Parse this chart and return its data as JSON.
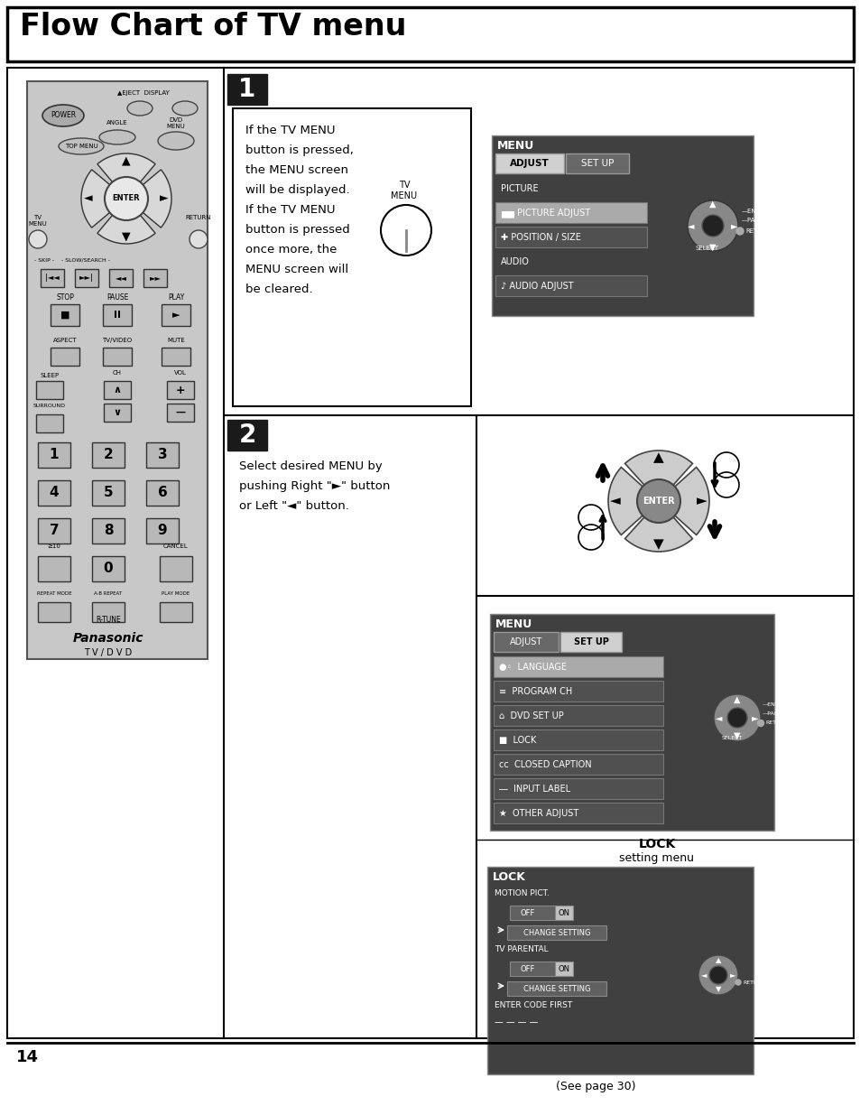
{
  "title": "Flow Chart of TV menu",
  "page_num": "14",
  "bg_color": "#ffffff",
  "section1_text_lines": [
    "If the TV MENU",
    "button is pressed,",
    "the MENU screen",
    "will be displayed.",
    "If the TV MENU",
    "button is pressed",
    "once more, the",
    "MENU screen will",
    "be cleared."
  ],
  "section2_text_lines": [
    "Select desired MENU by",
    "pushing Right \"►\" button",
    "or Left \"◄\" button."
  ],
  "menu1_items": [
    "PICTURE",
    "PICTURE ADJUST",
    "POSITION / SIZE",
    "AUDIO",
    "AUDIO ADJUST"
  ],
  "menu1_icons": [
    "",
    "▆▆",
    "✚",
    "",
    "♪"
  ],
  "menu1_highlight": 1,
  "menu2_items": [
    "LANGUAGE",
    "PROGRAM CH",
    "DVD SET UP",
    "LOCK",
    "CLOSED CAPTION",
    "INPUT LABEL",
    "OTHER ADJUST"
  ],
  "menu2_icons": [
    "●◦",
    "≡",
    "⌂",
    "■",
    "cc",
    "―",
    "★"
  ],
  "menu2_highlight": 0,
  "lock_label1": "LOCK",
  "lock_label2": "setting menu",
  "see_page": "(See page 30)",
  "dark_bg": "#404040",
  "dark_bg2": "#3c3c3c",
  "tab_active_bg": "#d0d0d0",
  "tab_inactive_bg": "#686868",
  "item_highlight_bg": "#aaaaaa",
  "item_bg": "#505050",
  "item_border": "#808080",
  "white": "#ffffff",
  "black": "#000000",
  "gray_remote": "#c8c8c8",
  "gray_btn": "#b0b0b0",
  "gray_dark": "#808080"
}
